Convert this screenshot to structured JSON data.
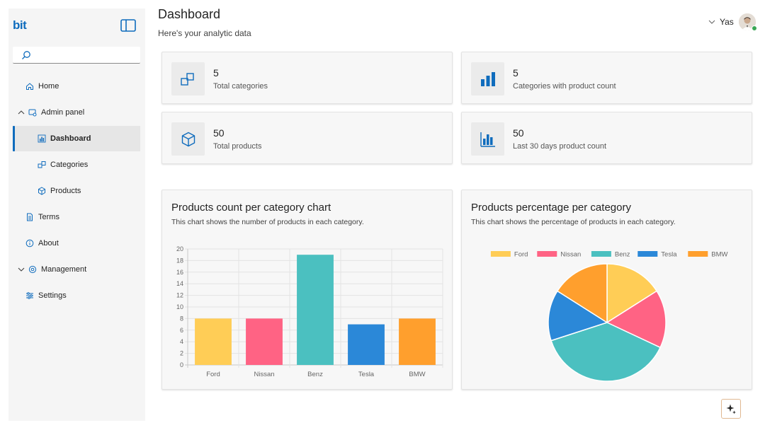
{
  "app": {
    "logo": "bit"
  },
  "search": {
    "placeholder": "",
    "value": ""
  },
  "sidebar": {
    "items": [
      {
        "label": "Home"
      },
      {
        "label": "Admin panel"
      },
      {
        "label": "Dashboard"
      },
      {
        "label": "Categories"
      },
      {
        "label": "Products"
      },
      {
        "label": "Terms"
      },
      {
        "label": "About"
      },
      {
        "label": "Management"
      },
      {
        "label": "Settings"
      }
    ]
  },
  "header": {
    "title": "Dashboard",
    "subtitle": "Here's your analytic data",
    "user_name": "Yas"
  },
  "stats": [
    {
      "value": "5",
      "label": "Total categories",
      "icon": "categories-icon"
    },
    {
      "value": "5",
      "label": "Categories with product count",
      "icon": "bar-chart-icon"
    },
    {
      "value": "50",
      "label": "Total products",
      "icon": "product-box-icon"
    },
    {
      "value": "50",
      "label": "Last 30 days product count",
      "icon": "bar-chart-bordered-icon"
    }
  ],
  "bar_card": {
    "title": "Products count per category chart",
    "subtitle": "This chart shows the number of products in each category."
  },
  "pie_card": {
    "title": "Products percentage per category",
    "subtitle": "This chart shows the percentage of products in each category."
  },
  "colors": {
    "accent": "#0f6cbd",
    "Ford": "#ffcd56",
    "Nissan": "#ff6384",
    "Benz": "#4bc0c0",
    "Tesla": "#2b88d8",
    "BMW": "#ff9f2d"
  },
  "chart_data": [
    {
      "type": "bar",
      "title": "Products count per category chart",
      "categories": [
        "Ford",
        "Nissan",
        "Benz",
        "Tesla",
        "BMW"
      ],
      "values": [
        8,
        8,
        19,
        7,
        8
      ],
      "ylim": [
        0,
        20
      ],
      "yticks": [
        0,
        2,
        4,
        6,
        8,
        10,
        12,
        14,
        16,
        18,
        20
      ],
      "grid": true,
      "xlabel": "",
      "ylabel": ""
    },
    {
      "type": "pie",
      "title": "Products percentage per category",
      "labels": [
        "Ford",
        "Nissan",
        "Benz",
        "Tesla",
        "BMW"
      ],
      "values": [
        8,
        8,
        19,
        7,
        8
      ],
      "legend": "top"
    }
  ]
}
